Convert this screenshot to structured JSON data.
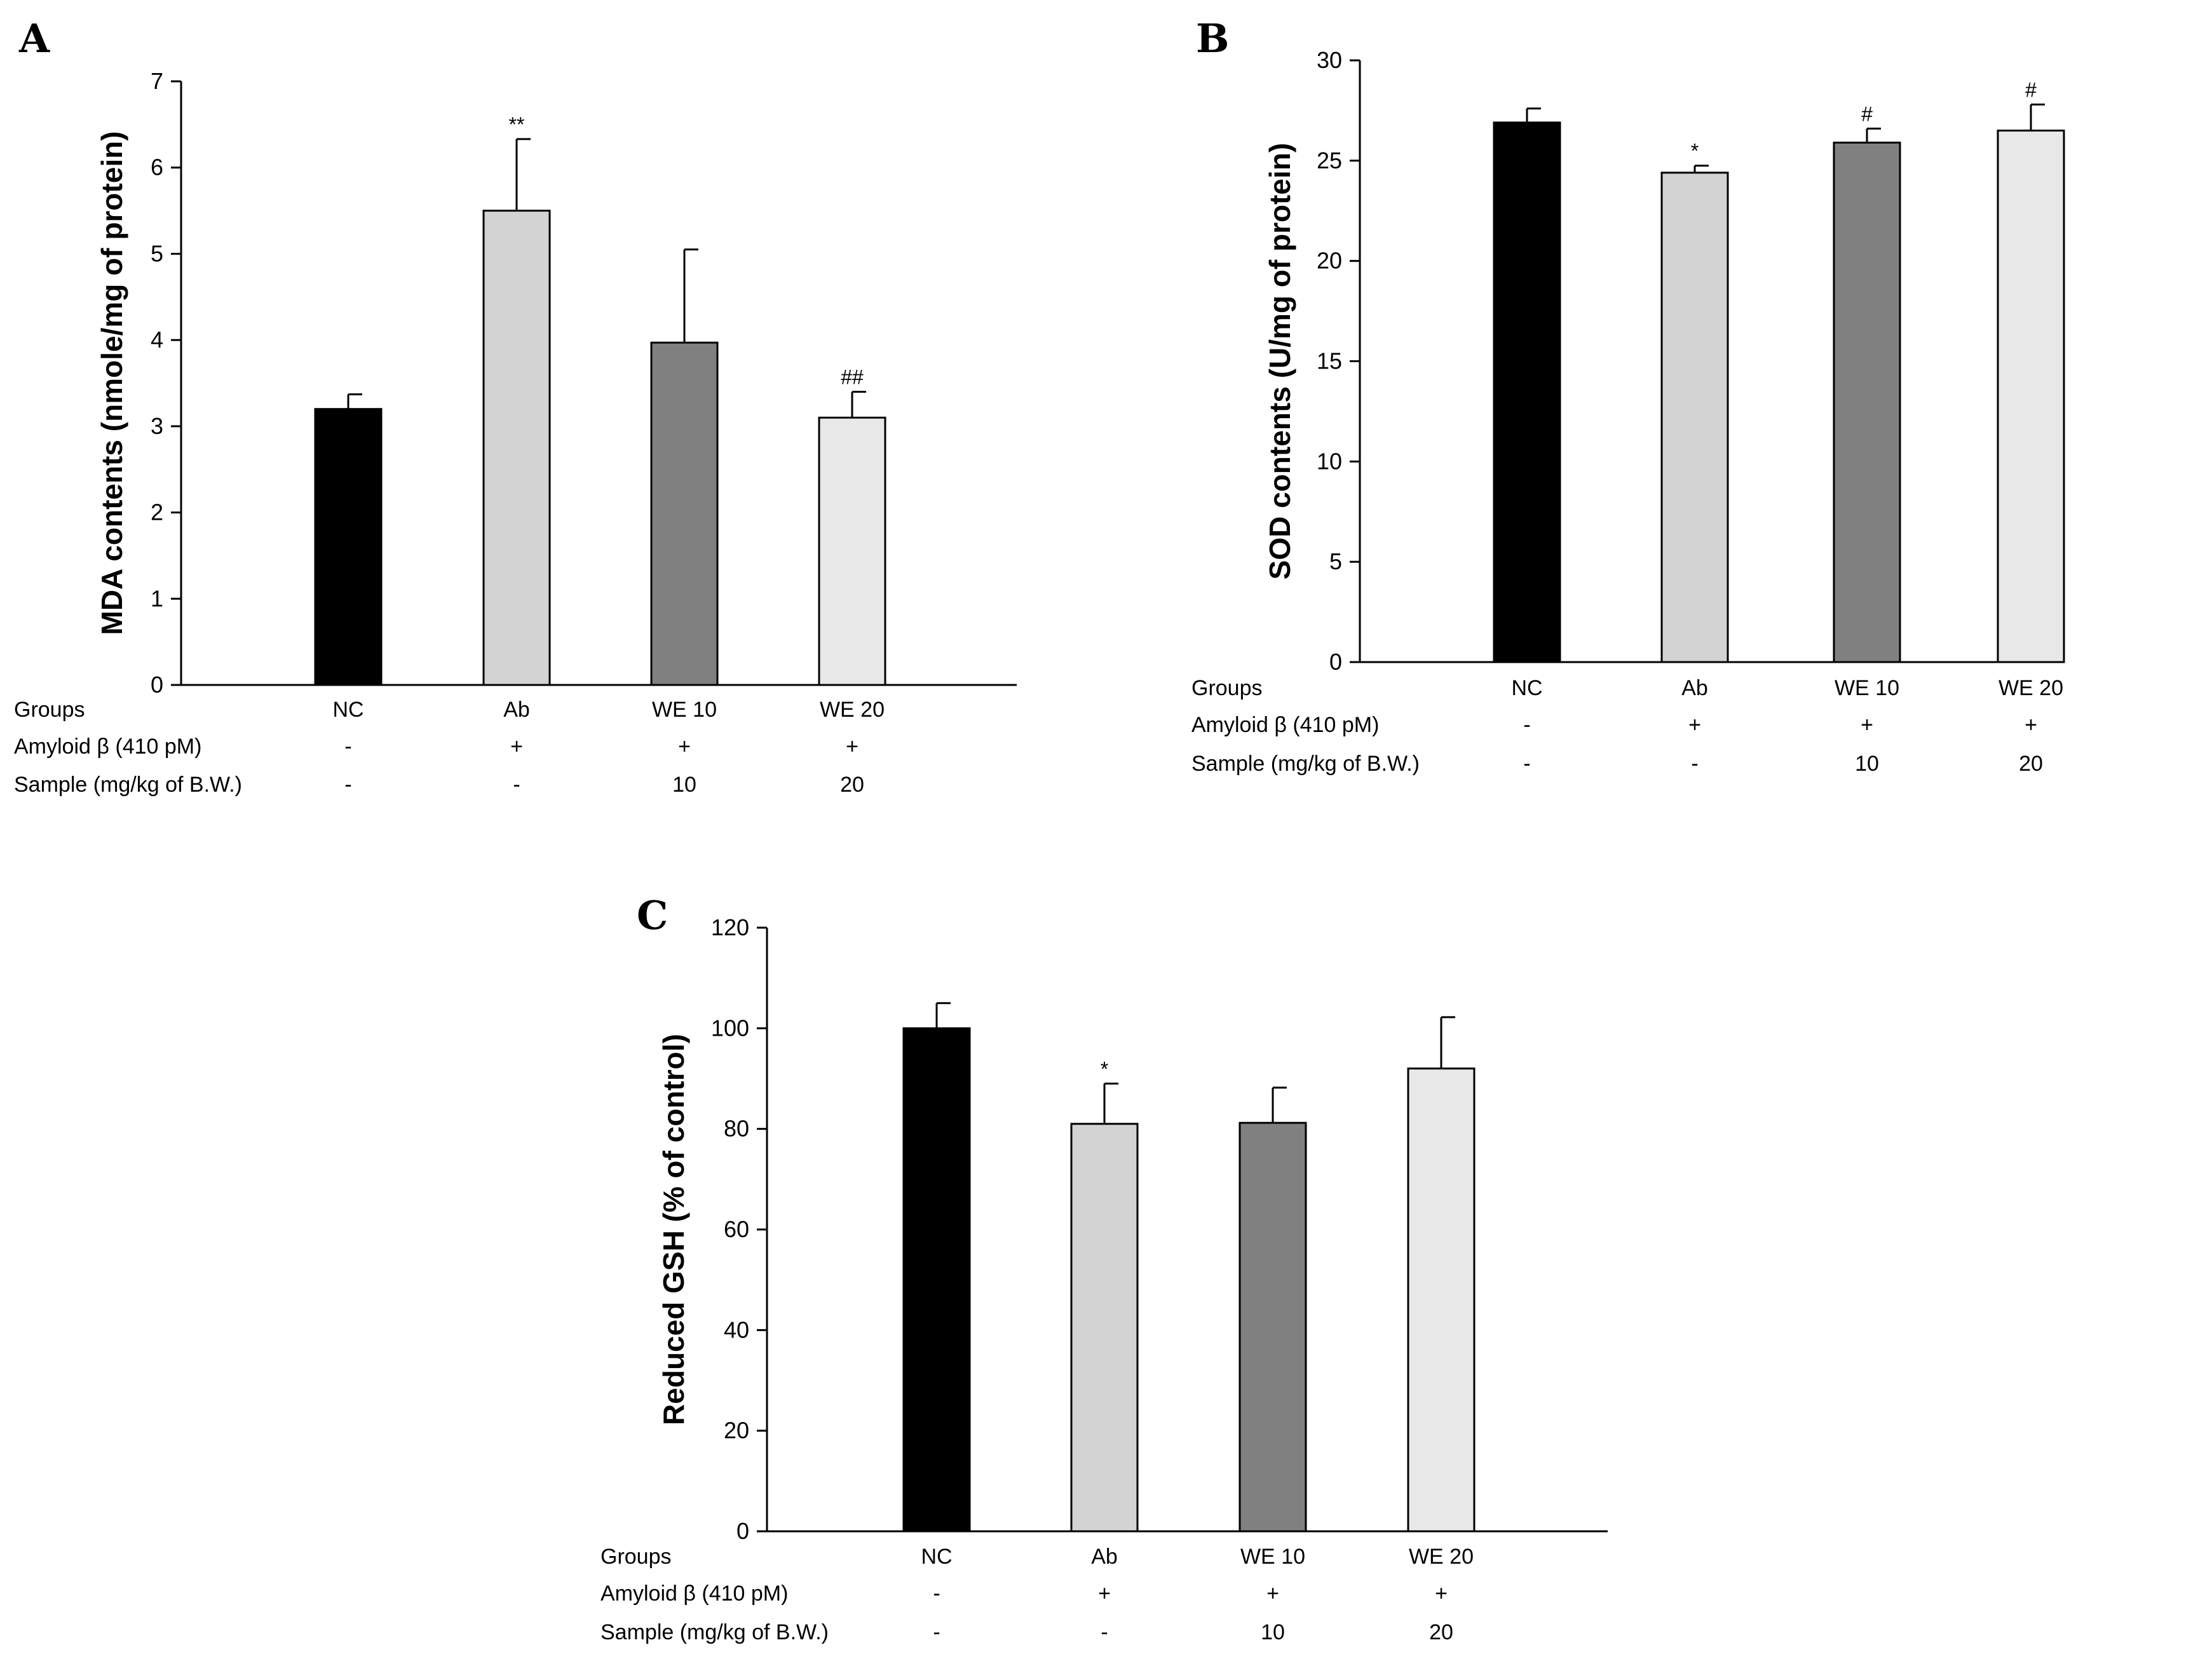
{
  "chart_data": [
    {
      "type": "bar",
      "panel": "A",
      "ylabel": "MDA contents (nmole/mg of protein)",
      "ylim": [
        0,
        7
      ],
      "yticks": [
        0,
        1,
        2,
        3,
        4,
        5,
        6,
        7
      ],
      "categories": [
        "NC",
        "Ab",
        "WE 10",
        "WE 20"
      ],
      "values": [
        3.2,
        5.5,
        3.97,
        3.1
      ],
      "errors": [
        0.17,
        0.83,
        1.08,
        0.3
      ],
      "significance": [
        "",
        "**",
        "",
        "##"
      ],
      "colors": [
        "#000000",
        "#d3d3d3",
        "#808080",
        "#e8e8e8"
      ],
      "table": {
        "rows": [
          {
            "label": "Groups",
            "cells": [
              "NC",
              "Ab",
              "WE 10",
              "WE 20"
            ]
          },
          {
            "label": "Amyloid β (410 pM)",
            "cells": [
              "-",
              "+",
              "+",
              "+"
            ]
          },
          {
            "label": "Sample (mg/kg of B.W.)",
            "cells": [
              "-",
              "-",
              "10",
              "20"
            ]
          }
        ]
      }
    },
    {
      "type": "bar",
      "panel": "B",
      "ylabel": "SOD contents (U/mg of protein)",
      "ylim": [
        0,
        30
      ],
      "yticks": [
        0,
        5,
        10,
        15,
        20,
        25,
        30
      ],
      "categories": [
        "NC",
        "Ab",
        "WE 10",
        "WE 20"
      ],
      "values": [
        26.9,
        24.4,
        25.9,
        26.5
      ],
      "errors": [
        0.7,
        0.35,
        0.7,
        1.3
      ],
      "significance": [
        "",
        "*",
        "#",
        "#"
      ],
      "colors": [
        "#000000",
        "#d3d3d3",
        "#808080",
        "#e8e8e8"
      ],
      "table": {
        "rows": [
          {
            "label": "Groups",
            "cells": [
              "NC",
              "Ab",
              "WE 10",
              "WE 20"
            ]
          },
          {
            "label": "Amyloid β (410 pM)",
            "cells": [
              "-",
              "+",
              "+",
              "+"
            ]
          },
          {
            "label": "Sample (mg/kg of B.W.)",
            "cells": [
              "-",
              "-",
              "10",
              "20"
            ]
          }
        ]
      }
    },
    {
      "type": "bar",
      "panel": "C",
      "ylabel": "Reduced GSH (% of control)",
      "ylim": [
        0,
        120
      ],
      "yticks": [
        0,
        20,
        40,
        60,
        80,
        100,
        120
      ],
      "categories": [
        "NC",
        "Ab",
        "WE 10",
        "WE 20"
      ],
      "values": [
        100,
        81,
        81.2,
        92
      ],
      "errors": [
        5,
        8,
        7,
        10.2
      ],
      "significance": [
        "",
        "*",
        "",
        ""
      ],
      "colors": [
        "#000000",
        "#d3d3d3",
        "#808080",
        "#e8e8e8"
      ],
      "table": {
        "rows": [
          {
            "label": "Groups",
            "cells": [
              "NC",
              "Ab",
              "WE 10",
              "WE 20"
            ]
          },
          {
            "label": "Amyloid β (410 pM)",
            "cells": [
              "-",
              "+",
              "+",
              "+"
            ]
          },
          {
            "label": "Sample (mg/kg of B.W.)",
            "cells": [
              "-",
              "-",
              "10",
              "20"
            ]
          }
        ]
      }
    }
  ]
}
